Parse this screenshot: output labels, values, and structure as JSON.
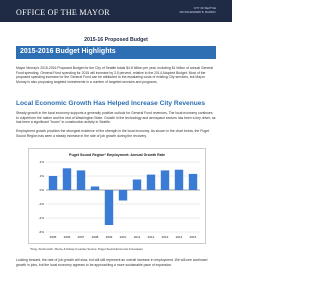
{
  "header": {
    "title": "OFFICE OF THE MAYOR",
    "line1": "CITY OF SEATTLE",
    "line2": "MAYOR EDWARD B. MURRAY"
  },
  "subtitle": "2015-16 Proposed Budget",
  "section_title": "2015-2016 Budget Highlights",
  "paragraphs": [
    "Mayor Murray's 2015-2016 Proposed Budget for the City of Seattle totals $4.8 billion per year, including $1 billion of annual General Fund spending. General Fund spending for 2015 will increase by 3.5 percent, relative to the 2014 Adopted Budget. Most of the proposed spending increase for the General Fund can be attributed to the escalating costs of existing City services, but Mayor Murray is also proposing targeted investments in a number of targeted services and programs.",
    "Steady growth in the local economy supports a generally positive outlook for General Fund revenues. The local economy continues to outperform the nation and the rest of Washington State. Growth in the technology and aerospace sectors has been a key driver, as has been a significant \"boom\" in construction activity in Seattle.",
    "Employment growth provides the strongest evidence of the strength in the local economy. As shown in the chart below, the Puget Sound Region has seen a steady increase in the rate of job growth during the recovery.",
    "Looking forward, the rate of job growth will slow, but will still represent an overall increase in employment. We will see continued growth in jobs, but the local economy appears to be approaching a more sustainable pace of expansion."
  ],
  "heading": "Local Economic Growth Has Helped Increase City Revenues",
  "chart_data": {
    "type": "bar",
    "title": "Puget Sound Region* Employment: Annual Growth Rate",
    "categories": [
      "2005",
      "2006",
      "2007",
      "2008",
      "2009",
      "2010",
      "2011",
      "2012",
      "2013",
      "2014",
      "2015"
    ],
    "values": [
      2.0,
      3.1,
      2.8,
      0.5,
      -5.0,
      -1.5,
      1.5,
      2.2,
      2.8,
      2.9,
      2.3
    ],
    "color": "#3a7bd5",
    "ylim": [
      -6,
      4
    ],
    "yticks": [
      {
        "value": -6,
        "label": "-6%"
      },
      {
        "value": -4,
        "label": "-4%"
      },
      {
        "value": -2,
        "label": "-2%"
      },
      {
        "value": 0,
        "label": "0%"
      },
      {
        "value": 2,
        "label": "2%"
      },
      {
        "value": 4,
        "label": "4%"
      }
    ],
    "grid": true
  },
  "footnote": "*King, Snohomish, Pierce & Kitsap Counties   Source: Puget Sound Economic Forecaster"
}
